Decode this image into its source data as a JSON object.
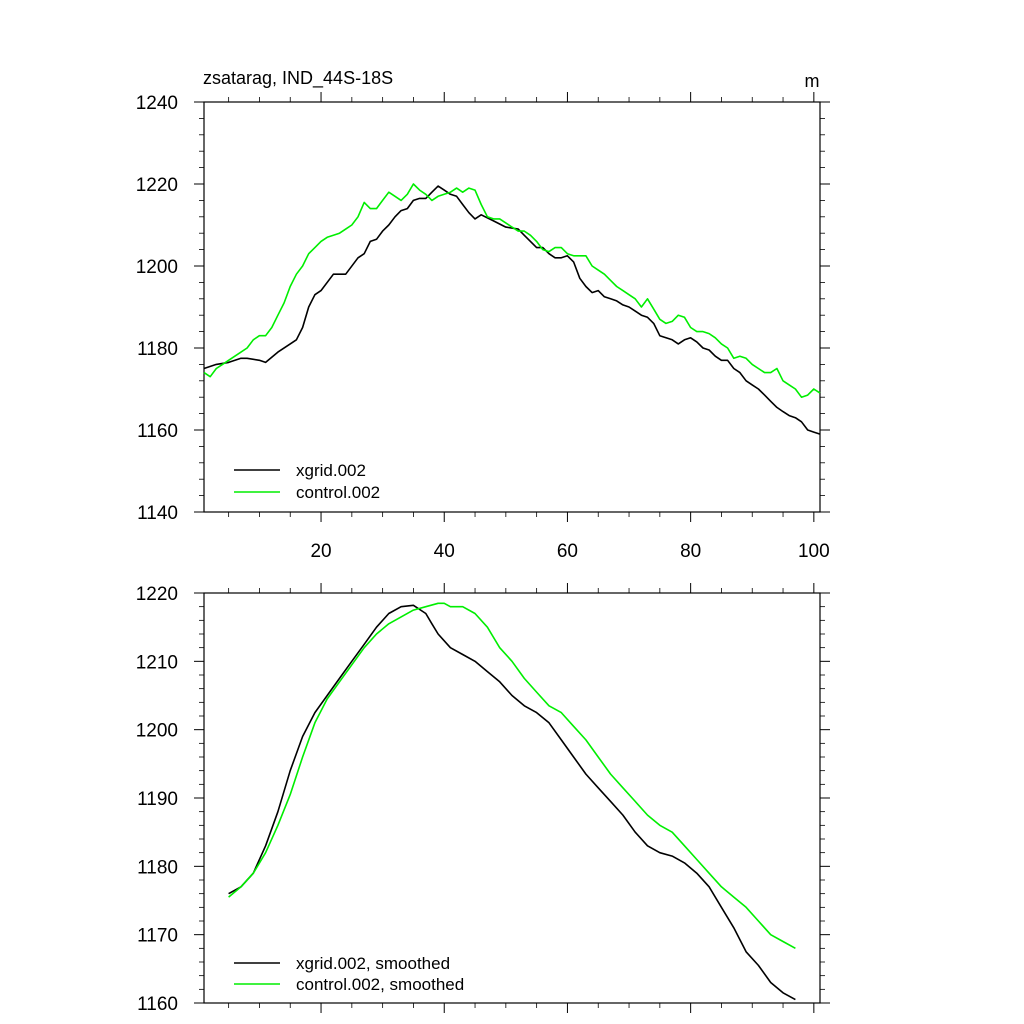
{
  "figure": {
    "title": "zsatarag, IND_44S-18S",
    "units": "m"
  },
  "colors": {
    "xgrid": "#000000",
    "control": "#00ee00"
  },
  "chart_data": [
    {
      "type": "line",
      "title": "zsatarag, IND_44S-18S",
      "units": "m",
      "xlabel": "",
      "ylabel": "",
      "xlim": [
        1,
        101
      ],
      "ylim": [
        1140,
        1240
      ],
      "xticks": [
        20,
        40,
        60,
        80,
        100
      ],
      "yticks": [
        1140,
        1160,
        1180,
        1200,
        1220,
        1240
      ],
      "legend_position": "bottom-left",
      "series": [
        {
          "name": "xgrid.002",
          "color_key": "xgrid",
          "x": [
            1,
            3,
            5,
            7,
            8,
            10,
            11,
            13,
            15,
            16,
            17,
            18,
            19,
            20,
            22,
            24,
            26,
            27,
            28,
            29,
            30,
            31,
            32,
            33,
            34,
            35,
            36,
            37,
            38,
            39,
            40,
            41,
            42,
            43,
            44,
            45,
            46,
            48,
            50,
            52,
            53,
            55,
            56,
            57,
            58,
            59,
            60,
            61,
            62,
            63,
            64,
            65,
            66,
            67,
            68,
            69,
            70,
            71,
            72,
            73,
            74,
            75,
            76,
            77,
            78,
            79,
            80,
            81,
            82,
            83,
            84,
            85,
            86,
            87,
            88,
            89,
            90,
            91,
            92,
            93,
            94,
            95,
            96,
            97,
            98,
            99,
            100,
            101
          ],
          "values": [
            1175,
            1176,
            1176.5,
            1177.5,
            1177.5,
            1177,
            1176.5,
            1179,
            1181,
            1182,
            1185,
            1190,
            1193,
            1194,
            1198,
            1198,
            1202,
            1203,
            1206,
            1206.5,
            1208.5,
            1210,
            1212,
            1213.5,
            1214,
            1216,
            1216.5,
            1216.5,
            1218,
            1219.5,
            1218.5,
            1217.5,
            1217,
            1215,
            1213,
            1211.5,
            1212.5,
            1211,
            1209.5,
            1209,
            1207.5,
            1204.5,
            1204.5,
            1203,
            1202,
            1202,
            1202.5,
            1201,
            1197,
            1195,
            1193.5,
            1194,
            1192.5,
            1192,
            1191.5,
            1190.5,
            1190,
            1189,
            1188,
            1187.5,
            1186,
            1183,
            1182.5,
            1182,
            1181,
            1182,
            1182.5,
            1181.5,
            1180,
            1179.5,
            1178,
            1177,
            1177,
            1175,
            1174,
            1172,
            1171,
            1170,
            1168.5,
            1167,
            1165.5,
            1164.5,
            1163.5,
            1163,
            1162,
            1160,
            1159.5,
            1159
          ]
        },
        {
          "name": "control.002",
          "color_key": "control",
          "x": [
            1,
            2,
            3,
            4,
            5,
            6,
            7,
            8,
            9,
            10,
            11,
            12,
            13,
            14,
            15,
            16,
            17,
            18,
            19,
            20,
            21,
            22,
            23,
            24,
            25,
            26,
            27,
            28,
            29,
            30,
            31,
            32,
            33,
            34,
            35,
            36,
            37,
            38,
            39,
            40,
            41,
            42,
            43,
            44,
            45,
            46,
            47,
            48,
            49,
            50,
            51,
            52,
            53,
            54,
            55,
            56,
            57,
            58,
            59,
            60,
            61,
            62,
            63,
            64,
            65,
            66,
            67,
            68,
            69,
            70,
            71,
            72,
            73,
            74,
            75,
            76,
            77,
            78,
            79,
            80,
            81,
            82,
            83,
            84,
            85,
            86,
            87,
            88,
            89,
            90,
            91,
            92,
            93,
            94,
            95,
            96,
            97,
            98,
            99,
            100,
            101
          ],
          "values": [
            1174,
            1173,
            1175,
            1176,
            1177,
            1178,
            1179,
            1180,
            1182,
            1183,
            1183,
            1185,
            1188,
            1191,
            1195,
            1198,
            1200,
            1203,
            1204.5,
            1206,
            1207,
            1207.5,
            1208,
            1209,
            1210,
            1212,
            1215.5,
            1214,
            1214,
            1216,
            1218,
            1217,
            1216,
            1217.5,
            1220,
            1218.5,
            1217.5,
            1216,
            1217,
            1217.5,
            1218,
            1219,
            1218,
            1219,
            1218.5,
            1215,
            1212,
            1211.5,
            1211.5,
            1210.5,
            1209.5,
            1208.5,
            1208.5,
            1207.5,
            1206,
            1204,
            1203.5,
            1204.5,
            1204.5,
            1203,
            1202.5,
            1202.5,
            1202.5,
            1200,
            1199,
            1198,
            1196.5,
            1195,
            1194,
            1193,
            1192,
            1190,
            1192,
            1189.5,
            1187,
            1186,
            1186.5,
            1188,
            1187.5,
            1185,
            1184,
            1184,
            1183.5,
            1182.5,
            1181,
            1180,
            1177.5,
            1178,
            1177.5,
            1176,
            1175,
            1174,
            1174,
            1175,
            1172,
            1171,
            1170,
            1168,
            1168.5,
            1170,
            1169
          ]
        }
      ]
    },
    {
      "type": "line",
      "title": "",
      "xlabel": "",
      "ylabel": "",
      "xlim": [
        1,
        101
      ],
      "ylim": [
        1160,
        1220
      ],
      "xticks": [
        20,
        40,
        60,
        80,
        100
      ],
      "yticks": [
        1160,
        1170,
        1180,
        1190,
        1200,
        1210,
        1220
      ],
      "legend_position": "bottom-left",
      "series": [
        {
          "name": "xgrid.002, smoothed",
          "color_key": "xgrid",
          "x": [
            5,
            7,
            9,
            11,
            13,
            15,
            17,
            19,
            21,
            23,
            25,
            27,
            29,
            31,
            33,
            35,
            37,
            38,
            39,
            41,
            43,
            45,
            47,
            49,
            51,
            53,
            55,
            57,
            59,
            61,
            63,
            65,
            67,
            69,
            71,
            73,
            75,
            77,
            79,
            81,
            83,
            85,
            87,
            89,
            91,
            93,
            95,
            97
          ],
          "values": [
            1176,
            1177,
            1179,
            1183,
            1188,
            1194,
            1199,
            1202.5,
            1205,
            1207.5,
            1210,
            1212.5,
            1215,
            1217,
            1218,
            1218.2,
            1217,
            1215.5,
            1214,
            1212,
            1211,
            1210,
            1208.5,
            1207,
            1205,
            1203.5,
            1202.5,
            1201,
            1198.5,
            1196,
            1193.5,
            1191.5,
            1189.5,
            1187.5,
            1185,
            1183,
            1182,
            1181.5,
            1180.5,
            1179,
            1177,
            1174,
            1171,
            1167.5,
            1165.5,
            1163,
            1161.5,
            1160.5
          ]
        },
        {
          "name": "control.002, smoothed",
          "color_key": "control",
          "x": [
            5,
            7,
            9,
            11,
            13,
            15,
            17,
            19,
            21,
            23,
            25,
            27,
            29,
            31,
            33,
            35,
            37,
            39,
            40,
            41,
            43,
            45,
            47,
            49,
            51,
            53,
            55,
            57,
            59,
            61,
            63,
            65,
            67,
            69,
            71,
            73,
            75,
            77,
            79,
            81,
            83,
            85,
            87,
            89,
            91,
            93,
            95,
            97
          ],
          "values": [
            1175.5,
            1177,
            1179,
            1182,
            1186,
            1190.5,
            1196,
            1201,
            1204.5,
            1207,
            1209.5,
            1212,
            1214,
            1215.5,
            1216.5,
            1217.5,
            1218,
            1218.5,
            1218.5,
            1218,
            1218,
            1217,
            1215,
            1212,
            1210,
            1207.5,
            1205.5,
            1203.5,
            1202.5,
            1200.5,
            1198.5,
            1196,
            1193.5,
            1191.5,
            1189.5,
            1187.5,
            1186,
            1185,
            1183,
            1181,
            1179,
            1177,
            1175.5,
            1174,
            1172,
            1170,
            1169,
            1168
          ]
        }
      ]
    }
  ]
}
